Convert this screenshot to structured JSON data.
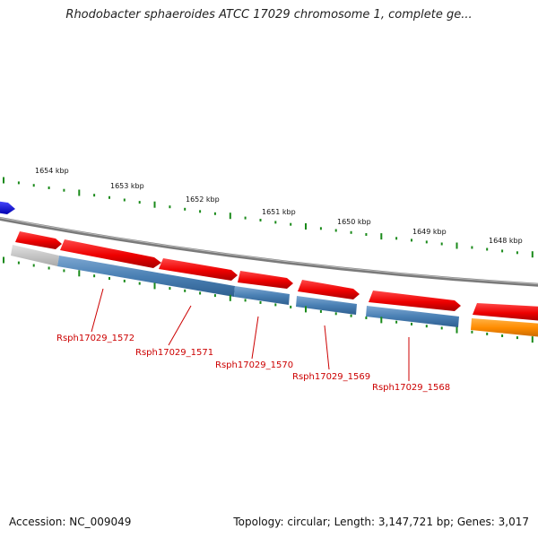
{
  "title": "Rhodobacter sphaeroides ATCC 17029 chromosome 1, complete ge...",
  "footer": {
    "accession": "Accession: NC_009049",
    "summary": "Topology: circular; Length: 3,147,721 bp; Genes: 3,017"
  },
  "ruler": {
    "labels": [
      "1654 kbp",
      "1653 kbp",
      "1652 kbp",
      "1651 kbp",
      "1650 kbp",
      "1649 kbp",
      "1648 kbp"
    ]
  },
  "genes": [
    {
      "name": "Rsph17029_1572"
    },
    {
      "name": "Rsph17029_1571"
    },
    {
      "name": "Rsph17029_1570"
    },
    {
      "name": "Rsph17029_1569"
    },
    {
      "name": "Rsph17029_1568"
    }
  ],
  "colors": {
    "forward_gene": "#ee1111",
    "cds_blue": "#4a80b4",
    "orange_gene": "#ff8c00",
    "grey_gene": "#c4c4c4",
    "blue_gene": "#0000ee",
    "tick_green": "#1a8a1a",
    "backbone": "#888888",
    "label_red": "#cc0000"
  }
}
